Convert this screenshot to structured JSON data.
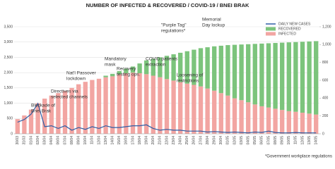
{
  "chart_data": {
    "type": "bar",
    "stacked": true,
    "title": "NUMBER OF INFECTED & RECOVERED / COVID-19 / BNEI BRAK",
    "footnote": "*Government workplace regulations",
    "categories": [
      "30/03",
      "31/03",
      "01/04",
      "02/04",
      "03/04",
      "04/04",
      "06/04",
      "07/04",
      "08/04",
      "09/04",
      "10/04",
      "11/04",
      "12/04",
      "13/04",
      "14/04",
      "15/04",
      "16/04",
      "17/04",
      "18/04",
      "19/04",
      "20/04",
      "21/04",
      "22/04",
      "23/04",
      "24/04",
      "25/04",
      "26/04",
      "27/04",
      "28/04",
      "29/04",
      "30/04",
      "01/05",
      "02/05",
      "03/05",
      "04/05",
      "05/05",
      "06/05",
      "07/05",
      "08/05",
      "09/05",
      "10/05",
      "11/05",
      "12/05",
      "13/05",
      "14/05"
    ],
    "series": [
      {
        "name": "INFECTED",
        "color": "#f2a5a2",
        "values": [
          480,
          600,
          790,
          1000,
          1150,
          1250,
          1330,
          1400,
          1500,
          1620,
          1700,
          1760,
          1800,
          1850,
          1880,
          1950,
          1980,
          2000,
          1980,
          1950,
          1900,
          1850,
          1790,
          1740,
          1690,
          1640,
          1600,
          1550,
          1480,
          1410,
          1330,
          1250,
          1160,
          1100,
          1030,
          960,
          900,
          860,
          820,
          780,
          740,
          720,
          690,
          660,
          630
        ]
      },
      {
        "name": "RECOVERED",
        "color": "#7cc47c",
        "values": [
          0,
          0,
          0,
          0,
          0,
          0,
          0,
          0,
          0,
          0,
          0,
          0,
          0,
          50,
          80,
          100,
          150,
          200,
          320,
          450,
          550,
          650,
          760,
          860,
          960,
          1060,
          1150,
          1250,
          1350,
          1450,
          1550,
          1650,
          1750,
          1820,
          1900,
          1980,
          2050,
          2100,
          2150,
          2200,
          2250,
          2280,
          2320,
          2360,
          2400
        ]
      },
      {
        "name": "DAILY NEW CASES",
        "type": "line",
        "axis": "y2",
        "color": "#2f5da5",
        "values": [
          130,
          160,
          220,
          340,
          80,
          90,
          60,
          90,
          40,
          70,
          50,
          80,
          60,
          90,
          70,
          70,
          80,
          90,
          90,
          100,
          60,
          40,
          50,
          40,
          40,
          30,
          30,
          30,
          20,
          25,
          20,
          15,
          20,
          15,
          10,
          20,
          15,
          30,
          15,
          10,
          10,
          15,
          10,
          10,
          10
        ]
      }
    ],
    "ylim": [
      0,
      3500
    ],
    "yticks": [
      0,
      500,
      {
        "value": 1000,
        "label": "1,000"
      },
      {
        "value": 1500,
        "label": "1,500"
      },
      {
        "value": 2000,
        "label": "2,000"
      },
      {
        "value": 2500,
        "label": "2,500"
      },
      {
        "value": 3000,
        "label": "3,000"
      },
      {
        "value": 3500,
        "label": "3,500"
      }
    ],
    "y2lim": [
      0,
      1200
    ],
    "y2ticks": [
      0,
      200,
      400,
      600,
      800,
      {
        "value": 1000,
        "label": "1,000"
      },
      {
        "value": 1200,
        "label": "1,200"
      }
    ],
    "grid": true,
    "legend": "top-right",
    "annotations": [
      {
        "lines": [
          "Blockade of",
          "Bnei Brak"
        ],
        "color": "#333333"
      },
      {
        "lines": [
          "Directives via",
          "selected channels"
        ],
        "color": "#333333"
      },
      {
        "lines": [
          "Nat'l Passover",
          "lockdown"
        ],
        "color": "#f0903a"
      },
      {
        "lines": [
          "Mandatory",
          "mask"
        ],
        "color": "#f0903a"
      },
      {
        "lines": [
          "Recovery",
          "testing ops."
        ],
        "color": "#333333"
      },
      {
        "lines": [
          "COVID patients",
          "extraction"
        ],
        "color": "#333333"
      },
      {
        "lines": [
          "Loosening of",
          "restrictions"
        ],
        "color": "#333333"
      },
      {
        "lines": [
          "\"Purple Tag\"",
          "regulations*"
        ],
        "color": "#f0903a"
      },
      {
        "lines": [
          "Memorial",
          "Day lockup"
        ],
        "color": "#f0903a"
      }
    ]
  }
}
